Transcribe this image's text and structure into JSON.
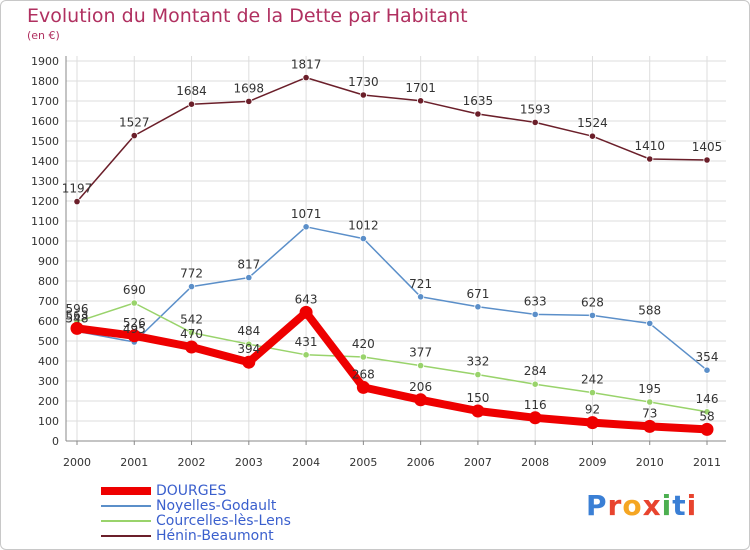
{
  "title": "Evolution du Montant de la Dette par Habitant",
  "subtitle": "(en €)",
  "logo": "Proxiti",
  "chart_data": {
    "type": "line",
    "title": "Evolution du Montant de la Dette par Habitant",
    "subtitle": "(en €)",
    "categories": [
      "2000",
      "2001",
      "2002",
      "2003",
      "2004",
      "2005",
      "2006",
      "2007",
      "2008",
      "2009",
      "2010",
      "2011"
    ],
    "ylim": [
      0,
      1900
    ],
    "yticks": [
      0,
      100,
      200,
      300,
      400,
      500,
      600,
      700,
      800,
      900,
      1000,
      1100,
      1200,
      1300,
      1400,
      1500,
      1600,
      1700,
      1800,
      1900
    ],
    "grid": true,
    "legend_position": "bottom-left",
    "series": [
      {
        "name": "Hénin-Beaumont",
        "color": "#6b1f2a",
        "values": [
          1197,
          1527,
          1684,
          1698,
          1817,
          1730,
          1701,
          1635,
          1593,
          1524,
          1410,
          1405
        ]
      },
      {
        "name": "Noyelles-Godault",
        "color": "#5b8fc9",
        "values": [
          548,
          495,
          772,
          817,
          1071,
          1012,
          721,
          671,
          633,
          628,
          588,
          354
        ]
      },
      {
        "name": "Courcelles-lès-Lens",
        "color": "#99d36b",
        "values": [
          596,
          690,
          542,
          484,
          431,
          420,
          377,
          332,
          284,
          242,
          195,
          146
        ]
      },
      {
        "name": "DOURGES",
        "color": "#ee0000",
        "values": [
          563,
          526,
          470,
          394,
          643,
          268,
          206,
          150,
          116,
          92,
          73,
          58
        ]
      }
    ]
  }
}
